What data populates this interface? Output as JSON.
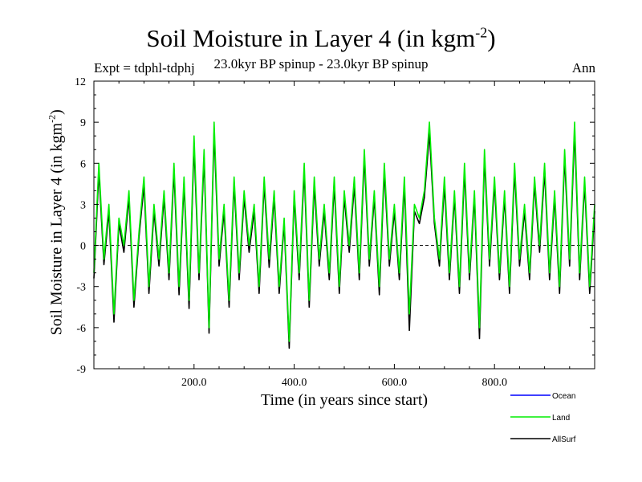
{
  "chart_data": {
    "type": "line",
    "title": "Soil Moisture in Layer 4 (in kgm",
    "title_sup": "-2",
    "title_close": ")",
    "subtitle": "23.0kyr BP spinup - 23.0kyr BP spinup",
    "expt_label": "Expt = tdphl-tdphj",
    "season_label": "Ann",
    "ylabel": "Soil Moisture in Layer 4 (in kgm",
    "ylabel_sup": "-2",
    "ylabel_close": ")",
    "xlabel": "Time (in years since start)",
    "xlim": [
      0,
      1000
    ],
    "ylim": [
      -9,
      12
    ],
    "x_ticks": [
      200,
      400,
      600,
      800
    ],
    "x_tick_labels": [
      "200.0",
      "400.0",
      "600.0",
      "800.0"
    ],
    "y_ticks": [
      -9,
      -6,
      -3,
      0,
      3,
      6,
      9,
      12
    ],
    "y_tick_labels": [
      "-9",
      "-6",
      "-3",
      "0",
      "3",
      "6",
      "9",
      "12"
    ],
    "zero_line": true,
    "series": [
      {
        "name": "Ocean",
        "color": "#0000ff",
        "x": [],
        "values": []
      },
      {
        "name": "Land",
        "color": "#00ee00",
        "x": [
          0,
          10,
          20,
          30,
          40,
          50,
          60,
          70,
          80,
          90,
          100,
          110,
          120,
          130,
          140,
          150,
          160,
          170,
          180,
          190,
          200,
          210,
          220,
          230,
          240,
          250,
          260,
          270,
          280,
          290,
          300,
          310,
          320,
          330,
          340,
          350,
          360,
          370,
          380,
          390,
          400,
          410,
          420,
          430,
          440,
          450,
          460,
          470,
          480,
          490,
          500,
          510,
          520,
          530,
          540,
          550,
          560,
          570,
          580,
          590,
          600,
          610,
          620,
          630,
          640,
          650,
          660,
          670,
          680,
          690,
          700,
          710,
          720,
          730,
          740,
          750,
          760,
          770,
          780,
          790,
          800,
          810,
          820,
          830,
          840,
          850,
          860,
          870,
          880,
          890,
          900,
          910,
          920,
          930,
          940,
          950,
          960,
          970,
          980,
          990,
          1000
        ],
        "values": [
          -2,
          6,
          -1,
          3,
          -5,
          2,
          0,
          4,
          -4,
          1,
          5,
          -3,
          3,
          -1,
          4,
          -2,
          6,
          -3,
          5,
          -4,
          8,
          -2,
          7,
          -6,
          9,
          -1,
          3,
          -4,
          5,
          -2,
          4,
          0,
          3,
          -3,
          5,
          -1,
          4,
          -3,
          2,
          -7,
          4,
          -2,
          6,
          -4,
          5,
          -1,
          3,
          -2,
          5,
          -3,
          4,
          0,
          5,
          -2,
          7,
          -1,
          4,
          -3,
          6,
          -1,
          3,
          -2,
          5,
          -5,
          3,
          2,
          4,
          9,
          2,
          -1,
          5,
          -2,
          4,
          -3,
          6,
          -2,
          4,
          -6,
          7,
          -1,
          5,
          -2,
          4,
          -3,
          6,
          -1,
          3,
          -2,
          5,
          0,
          6,
          -2,
          4,
          -3,
          7,
          -1,
          9,
          -2,
          5,
          -3,
          3
        ]
      },
      {
        "name": "AllSurf",
        "color": "#000000",
        "x": [
          0,
          10,
          20,
          30,
          40,
          50,
          60,
          70,
          80,
          90,
          100,
          110,
          120,
          130,
          140,
          150,
          160,
          170,
          180,
          190,
          200,
          210,
          220,
          230,
          240,
          250,
          260,
          270,
          280,
          290,
          300,
          310,
          320,
          330,
          340,
          350,
          360,
          370,
          380,
          390,
          400,
          410,
          420,
          430,
          440,
          450,
          460,
          470,
          480,
          490,
          500,
          510,
          520,
          530,
          540,
          550,
          560,
          570,
          580,
          590,
          600,
          610,
          620,
          630,
          640,
          650,
          660,
          670,
          680,
          690,
          700,
          710,
          720,
          730,
          740,
          750,
          760,
          770,
          780,
          790,
          800,
          810,
          820,
          830,
          840,
          850,
          860,
          870,
          880,
          890,
          900,
          910,
          920,
          930,
          940,
          950,
          960,
          970,
          980,
          990,
          1000
        ],
        "values": [
          -2.4,
          5.4,
          -1.4,
          2.5,
          -5.6,
          1.6,
          -0.5,
          3.5,
          -4.5,
          0.6,
          4.4,
          -3.5,
          2.5,
          -1.5,
          3.5,
          -2.5,
          5.4,
          -3.6,
          4.5,
          -4.6,
          7.3,
          -2.5,
          6.4,
          -6.4,
          8.3,
          -1.5,
          2.5,
          -4.5,
          4.5,
          -2.5,
          3.5,
          -0.5,
          2.5,
          -3.5,
          4.5,
          -1.6,
          3.5,
          -3.5,
          1.6,
          -7.5,
          3.5,
          -2.5,
          5.4,
          -4.5,
          4.4,
          -1.5,
          2.5,
          -2.5,
          4.4,
          -3.5,
          3.5,
          -0.5,
          4.4,
          -2.5,
          6.4,
          -1.5,
          3.5,
          -3.6,
          5.4,
          -1.5,
          2.5,
          -2.5,
          4.4,
          -6.2,
          2.5,
          1.6,
          3.5,
          8.2,
          1.6,
          -1.5,
          4.4,
          -2.5,
          3.5,
          -3.5,
          5.4,
          -2.5,
          3.5,
          -6.8,
          6.4,
          -1.5,
          4.5,
          -2.5,
          3.5,
          -3.5,
          5.4,
          -1.5,
          2.5,
          -2.5,
          4.5,
          -0.5,
          5.4,
          -2.5,
          3.5,
          -3.5,
          6.4,
          -1.5,
          8.3,
          -2.5,
          4.5,
          -3.5,
          2.5
        ]
      }
    ]
  }
}
